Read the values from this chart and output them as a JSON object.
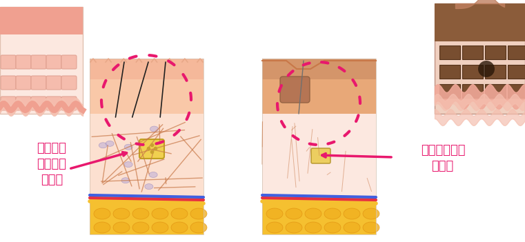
{
  "title": "",
  "background_color": "#ffffff",
  "label_left_line1": "若々しい",
  "label_left_line2": "健康的な",
  "label_left_line3": "肌断面",
  "label_right_line1": "年齢を重ねた",
  "label_right_line2": "肌断面",
  "label_color": "#e8186d",
  "figsize": [
    7.61,
    3.51
  ],
  "dpi": 100,
  "skin_young_top_color": "#f5c0a0",
  "skin_young_mid_color": "#f9d5be",
  "skin_young_deep_color": "#fce8d8",
  "skin_aged_top_color": "#c8845a",
  "skin_aged_mid_color": "#d4956a",
  "skin_aged_deep_color": "#e8b090",
  "fat_color": "#f5c030",
  "collagen_color_young": "#c8784a",
  "collagen_color_aged": "#b06840",
  "dashed_circle_color": "#e8186d",
  "arrow_color": "#e8186d",
  "stripe_color_top_young": "#f0a090",
  "stripe_color_top_aged": "#a05030",
  "nerve_red": "#e83040",
  "nerve_blue": "#4060e0",
  "nerve_yellow": "#f0c020"
}
